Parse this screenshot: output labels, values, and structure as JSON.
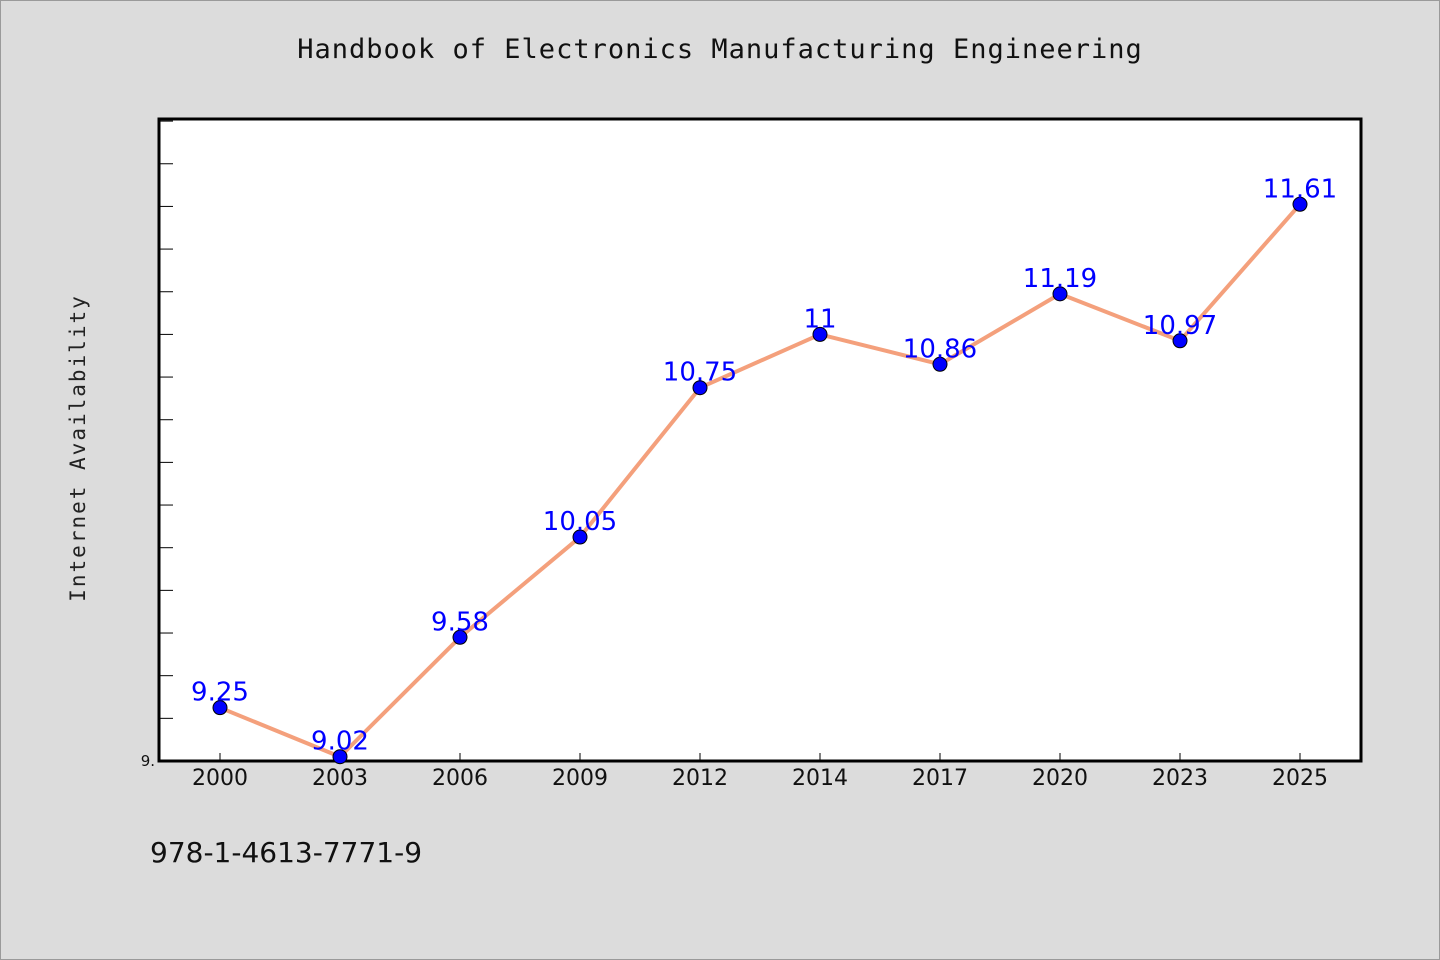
{
  "figure": {
    "title": "Handbook of Electronics Manufacturing Engineering",
    "footer": "978-1-4613-7771-9"
  },
  "colors": {
    "background": "#dcdcdc",
    "plot_background": "#ffffff",
    "line": "#f4a07c",
    "marker": "#0000ff",
    "label": "#0000ff"
  },
  "chart_data": {
    "type": "line",
    "title": "Handbook of Electronics Manufacturing Engineering",
    "xlabel": "",
    "ylabel": "Internet Availability",
    "categories": [
      "2000",
      "2003",
      "2006",
      "2009",
      "2012",
      "2014",
      "2017",
      "2020",
      "2023",
      "2025"
    ],
    "series": [
      {
        "values": [
          9.25,
          9.02,
          9.58,
          10.05,
          10.75,
          11,
          10.86,
          11.19,
          10.97,
          11.61
        ],
        "labels": [
          "9.25",
          "9.02",
          "9.58",
          "10.05",
          "10.75",
          "11",
          "10.86",
          "11.19",
          "10.97",
          "11.61"
        ]
      }
    ],
    "ylim": [
      9.0,
      12.0
    ],
    "ytick_labels": [
      {
        "value": 9.0,
        "label": "9."
      }
    ],
    "minor_tick_step": 0.2,
    "grid": false,
    "legend": "none"
  }
}
